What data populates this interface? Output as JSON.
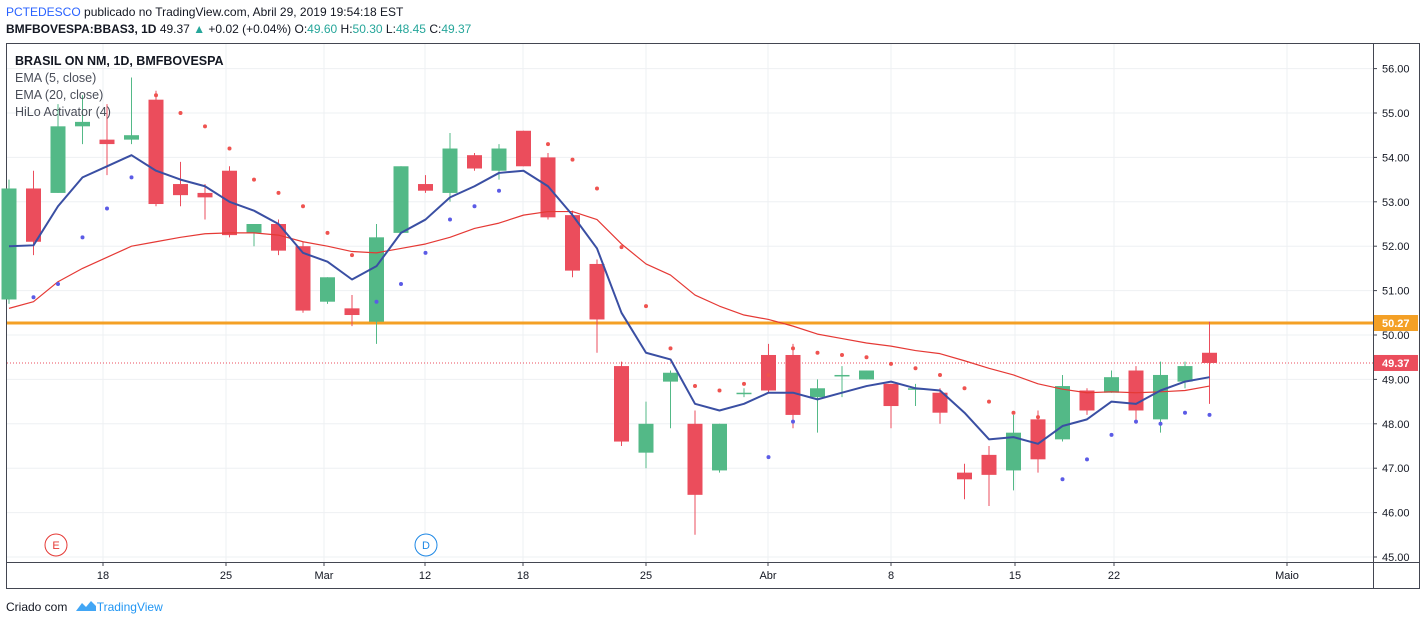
{
  "header": {
    "author": "PCTEDESCO",
    "published": " publicado no TradingView.com, Abril 29, 2019 19:54:18 EST",
    "symbol": "BMFBOVESPA:BBAS3, 1D",
    "last": "49.37",
    "change": "+0.02 (+0.04%)",
    "o_label": "O:",
    "o_value": "49.60",
    "h_label": "H:",
    "h_value": "50.30",
    "l_label": "L:",
    "l_value": "48.45",
    "c_label": "C:",
    "c_value": "49.37"
  },
  "legend": {
    "title": "BRASIL ON NM, 1D, BMFBOVESPA",
    "items": [
      "EMA (5, close)",
      "EMA (20, close)",
      "HiLo Activator (4)"
    ]
  },
  "footer": {
    "created": "Criado com",
    "brand": "TradingView"
  },
  "colors": {
    "up": "#53b987",
    "down": "#eb4d5c",
    "ema5": "#3a4fa3",
    "ema20": "#e53935",
    "hilo_high": "#ef5350",
    "hilo_low": "#5b5be6",
    "hline": "#f4a025",
    "grid": "#eef0f3"
  },
  "chart_data": {
    "type": "candlestick",
    "ylim": [
      44.8,
      56.5
    ],
    "y_ticks": [
      "45.00",
      "46.00",
      "47.00",
      "48.00",
      "49.00",
      "50.00",
      "51.00",
      "52.00",
      "53.00",
      "54.00",
      "55.00",
      "56.00"
    ],
    "x_ticks": [
      "18",
      "25",
      "Mar",
      "12",
      "18",
      "25",
      "Abr",
      "8",
      "15",
      "22",
      "Maio"
    ],
    "horizontal_line": {
      "value": 50.27,
      "label": "50.27"
    },
    "last_price": {
      "value": 49.37,
      "label": "49.37"
    },
    "markers": [
      "E",
      "D"
    ],
    "candles": [
      {
        "o": 50.8,
        "h": 53.5,
        "l": 50.7,
        "c": 53.3
      },
      {
        "o": 53.3,
        "h": 53.7,
        "l": 51.8,
        "c": 52.1
      },
      {
        "o": 53.2,
        "h": 55.2,
        "l": 53.2,
        "c": 54.7
      },
      {
        "o": 54.7,
        "h": 55.4,
        "l": 54.3,
        "c": 54.8
      },
      {
        "o": 54.4,
        "h": 55.2,
        "l": 53.6,
        "c": 54.3
      },
      {
        "o": 54.4,
        "h": 55.8,
        "l": 54.3,
        "c": 54.5
      },
      {
        "o": 55.3,
        "h": 55.5,
        "l": 52.9,
        "c": 52.95
      },
      {
        "o": 53.4,
        "h": 53.9,
        "l": 52.9,
        "c": 53.15
      },
      {
        "o": 53.2,
        "h": 53.4,
        "l": 52.6,
        "c": 53.1
      },
      {
        "o": 53.7,
        "h": 53.8,
        "l": 52.2,
        "c": 52.25
      },
      {
        "o": 52.3,
        "h": 52.5,
        "l": 52.0,
        "c": 52.5
      },
      {
        "o": 52.5,
        "h": 52.6,
        "l": 51.8,
        "c": 51.9
      },
      {
        "o": 52.0,
        "h": 52.1,
        "l": 50.5,
        "c": 50.55
      },
      {
        "o": 50.75,
        "h": 51.3,
        "l": 50.7,
        "c": 51.3
      },
      {
        "o": 50.6,
        "h": 50.9,
        "l": 50.2,
        "c": 50.45
      },
      {
        "o": 50.3,
        "h": 52.5,
        "l": 49.8,
        "c": 52.2
      },
      {
        "o": 52.3,
        "h": 53.8,
        "l": 52.3,
        "c": 53.8
      },
      {
        "o": 53.4,
        "h": 53.6,
        "l": 53.2,
        "c": 53.25
      },
      {
        "o": 53.2,
        "h": 54.55,
        "l": 53.0,
        "c": 54.2
      },
      {
        "o": 54.05,
        "h": 54.1,
        "l": 53.7,
        "c": 53.75
      },
      {
        "o": 53.7,
        "h": 54.3,
        "l": 53.5,
        "c": 54.2
      },
      {
        "o": 54.6,
        "h": 54.6,
        "l": 53.8,
        "c": 53.8
      },
      {
        "o": 54.0,
        "h": 54.1,
        "l": 52.6,
        "c": 52.65
      },
      {
        "o": 52.7,
        "h": 52.8,
        "l": 51.3,
        "c": 51.45
      },
      {
        "o": 51.6,
        "h": 51.7,
        "l": 49.6,
        "c": 50.35
      },
      {
        "o": 49.3,
        "h": 49.4,
        "l": 47.5,
        "c": 47.6
      },
      {
        "o": 47.35,
        "h": 48.5,
        "l": 47.0,
        "c": 48.0
      },
      {
        "o": 48.95,
        "h": 49.2,
        "l": 47.9,
        "c": 49.15
      },
      {
        "o": 48.0,
        "h": 48.3,
        "l": 45.5,
        "c": 46.4
      },
      {
        "o": 46.95,
        "h": 48.0,
        "l": 46.9,
        "c": 48.0
      },
      {
        "o": 48.7,
        "h": 48.8,
        "l": 48.6,
        "c": 48.7
      },
      {
        "o": 49.55,
        "h": 49.8,
        "l": 48.7,
        "c": 48.75
      },
      {
        "o": 49.55,
        "h": 49.8,
        "l": 47.9,
        "c": 48.2
      },
      {
        "o": 48.6,
        "h": 49.0,
        "l": 47.8,
        "c": 48.8
      },
      {
        "o": 49.1,
        "h": 49.3,
        "l": 48.6,
        "c": 49.1
      },
      {
        "o": 49.0,
        "h": 49.2,
        "l": 49.0,
        "c": 49.2
      },
      {
        "o": 48.9,
        "h": 48.9,
        "l": 47.9,
        "c": 48.4
      },
      {
        "o": 48.8,
        "h": 48.9,
        "l": 48.4,
        "c": 48.8
      },
      {
        "o": 48.7,
        "h": 48.8,
        "l": 48.0,
        "c": 48.25
      },
      {
        "o": 46.9,
        "h": 47.1,
        "l": 46.3,
        "c": 46.75
      },
      {
        "o": 47.3,
        "h": 47.5,
        "l": 46.15,
        "c": 46.85
      },
      {
        "o": 46.95,
        "h": 48.2,
        "l": 46.5,
        "c": 47.8
      },
      {
        "o": 48.1,
        "h": 48.3,
        "l": 46.9,
        "c": 47.2
      },
      {
        "o": 47.65,
        "h": 49.1,
        "l": 47.6,
        "c": 48.85
      },
      {
        "o": 48.75,
        "h": 48.8,
        "l": 48.2,
        "c": 48.3
      },
      {
        "o": 48.7,
        "h": 49.2,
        "l": 48.7,
        "c": 49.05
      },
      {
        "o": 49.2,
        "h": 49.3,
        "l": 48.0,
        "c": 48.3
      },
      {
        "o": 48.1,
        "h": 49.4,
        "l": 47.8,
        "c": 49.1
      },
      {
        "o": 48.95,
        "h": 49.4,
        "l": 48.8,
        "c": 49.3
      },
      {
        "o": 49.6,
        "h": 50.3,
        "l": 48.45,
        "c": 49.37
      }
    ],
    "series": [
      {
        "name": "EMA (5, close)",
        "values": [
          52.0,
          52.02,
          52.9,
          53.55,
          53.8,
          54.05,
          53.7,
          53.5,
          53.35,
          53.0,
          52.8,
          52.5,
          51.85,
          51.65,
          51.25,
          51.55,
          52.3,
          52.6,
          53.1,
          53.35,
          53.65,
          53.7,
          53.35,
          52.7,
          51.95,
          50.5,
          49.6,
          49.45,
          48.45,
          48.3,
          48.45,
          48.7,
          48.7,
          48.55,
          48.7,
          48.85,
          48.95,
          48.8,
          48.75,
          48.25,
          47.65,
          47.7,
          47.55,
          47.95,
          48.1,
          48.5,
          48.45,
          48.75,
          48.95,
          49.05
        ]
      },
      {
        "name": "EMA (20, close)",
        "values": [
          50.6,
          50.75,
          51.2,
          51.5,
          51.75,
          52.0,
          52.1,
          52.2,
          52.28,
          52.3,
          52.3,
          52.25,
          52.1,
          52.0,
          51.88,
          51.85,
          51.95,
          52.05,
          52.2,
          52.4,
          52.52,
          52.7,
          52.78,
          52.78,
          52.6,
          52.05,
          51.6,
          51.35,
          50.9,
          50.65,
          50.45,
          50.35,
          50.2,
          50.02,
          49.92,
          49.82,
          49.75,
          49.65,
          49.58,
          49.42,
          49.25,
          49.1,
          48.9,
          48.78,
          48.7,
          48.72,
          48.7,
          48.72,
          48.75,
          48.85
        ]
      },
      {
        "name": "HiLo Activator (4)",
        "hi": [
          null,
          null,
          null,
          null,
          null,
          null,
          55.4,
          55.0,
          54.7,
          54.2,
          53.5,
          53.2,
          52.9,
          52.3,
          51.8,
          null,
          null,
          null,
          null,
          null,
          null,
          null,
          54.3,
          53.95,
          53.3,
          51.98,
          50.65,
          49.7,
          48.85,
          48.75,
          48.9,
          49.1,
          49.7,
          49.6,
          49.55,
          49.5,
          49.35,
          49.25,
          49.1,
          48.8,
          48.5,
          48.25,
          48.15,
          null,
          null,
          null,
          null,
          null,
          null,
          null
        ],
        "lo": [
          null,
          50.85,
          51.15,
          52.2,
          52.85,
          53.55,
          null,
          null,
          null,
          null,
          null,
          null,
          null,
          null,
          null,
          50.75,
          51.15,
          51.85,
          52.6,
          52.9,
          53.25,
          null,
          null,
          null,
          null,
          null,
          null,
          null,
          null,
          null,
          null,
          47.25,
          48.05,
          null,
          null,
          null,
          null,
          null,
          null,
          null,
          null,
          null,
          null,
          46.75,
          47.2,
          47.75,
          48.05,
          48.0,
          48.25,
          48.2
        ]
      }
    ]
  }
}
